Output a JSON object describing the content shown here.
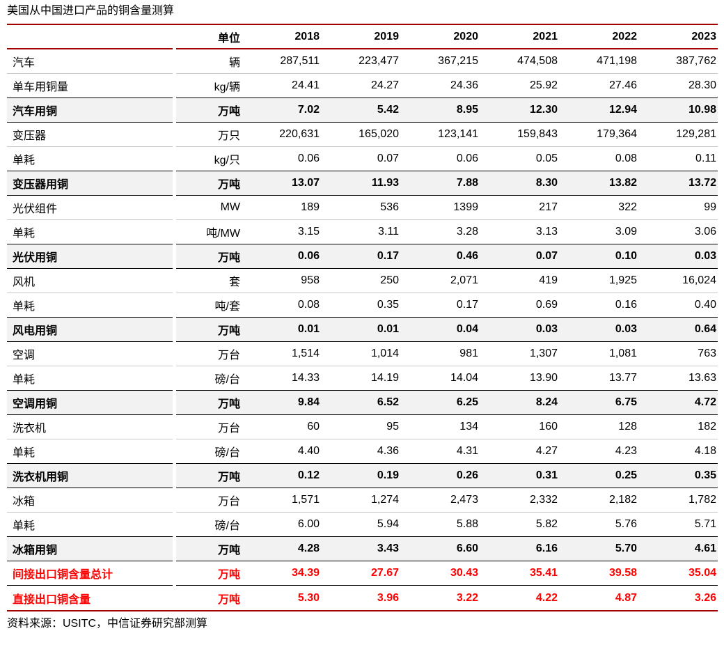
{
  "title": "美国从中国进口产品的铜含量测算",
  "source": "资料来源：USITC，中信证券研究部测算",
  "colors": {
    "rule_dark_red": "#a00000",
    "highlight_red": "#ff0000",
    "separator_gray": "#c9c9c9",
    "subtotal_row_bg": "#f2f2f2"
  },
  "table": {
    "unit_header": "单位",
    "years": [
      "2018",
      "2019",
      "2020",
      "2021",
      "2022",
      "2023"
    ],
    "rows": [
      {
        "label": "汽车",
        "unit": "辆",
        "style": "plain",
        "values": [
          "287,511",
          "223,477",
          "367,215",
          "474,508",
          "471,198",
          "387,762"
        ]
      },
      {
        "label": "单车用铜量",
        "unit": "kg/辆",
        "style": "plain",
        "values": [
          "24.41",
          "24.27",
          "24.36",
          "25.92",
          "27.46",
          "28.30"
        ]
      },
      {
        "label": "汽车用铜",
        "unit": "万吨",
        "style": "subtotal",
        "values": [
          "7.02",
          "5.42",
          "8.95",
          "12.30",
          "12.94",
          "10.98"
        ]
      },
      {
        "label": "变压器",
        "unit": "万只",
        "style": "plain",
        "values": [
          "220,631",
          "165,020",
          "123,141",
          "159,843",
          "179,364",
          "129,281"
        ]
      },
      {
        "label": "单耗",
        "unit": "kg/只",
        "style": "plain",
        "values": [
          "0.06",
          "0.07",
          "0.06",
          "0.05",
          "0.08",
          "0.11"
        ]
      },
      {
        "label": "变压器用铜",
        "unit": "万吨",
        "style": "subtotal",
        "values": [
          "13.07",
          "11.93",
          "7.88",
          "8.30",
          "13.82",
          "13.72"
        ]
      },
      {
        "label": "光伏组件",
        "unit": "MW",
        "style": "plain",
        "values": [
          "189",
          "536",
          "1399",
          "217",
          "322",
          "99"
        ]
      },
      {
        "label": "单耗",
        "unit": "吨/MW",
        "style": "plain",
        "values": [
          "3.15",
          "3.11",
          "3.28",
          "3.13",
          "3.09",
          "3.06"
        ]
      },
      {
        "label": "光伏用铜",
        "unit": "万吨",
        "style": "subtotal",
        "values": [
          "0.06",
          "0.17",
          "0.46",
          "0.07",
          "0.10",
          "0.03"
        ]
      },
      {
        "label": "风机",
        "unit": "套",
        "style": "plain",
        "values": [
          "958",
          "250",
          "2,071",
          "419",
          "1,925",
          "16,024"
        ]
      },
      {
        "label": "单耗",
        "unit": "吨/套",
        "style": "plain",
        "values": [
          "0.08",
          "0.35",
          "0.17",
          "0.69",
          "0.16",
          "0.40"
        ]
      },
      {
        "label": "风电用铜",
        "unit": "万吨",
        "style": "subtotal",
        "values": [
          "0.01",
          "0.01",
          "0.04",
          "0.03",
          "0.03",
          "0.64"
        ]
      },
      {
        "label": "空调",
        "unit": "万台",
        "style": "plain",
        "values": [
          "1,514",
          "1,014",
          "981",
          "1,307",
          "1,081",
          "763"
        ]
      },
      {
        "label": "单耗",
        "unit": "磅/台",
        "style": "plain",
        "values": [
          "14.33",
          "14.19",
          "14.04",
          "13.90",
          "13.77",
          "13.63"
        ]
      },
      {
        "label": "空调用铜",
        "unit": "万吨",
        "style": "subtotal",
        "values": [
          "9.84",
          "6.52",
          "6.25",
          "8.24",
          "6.75",
          "4.72"
        ]
      },
      {
        "label": "洗衣机",
        "unit": "万台",
        "style": "plain",
        "values": [
          "60",
          "95",
          "134",
          "160",
          "128",
          "182"
        ]
      },
      {
        "label": "单耗",
        "unit": "磅/台",
        "style": "plain",
        "values": [
          "4.40",
          "4.36",
          "4.31",
          "4.27",
          "4.23",
          "4.18"
        ]
      },
      {
        "label": "洗衣机用铜",
        "unit": "万吨",
        "style": "subtotal",
        "values": [
          "0.12",
          "0.19",
          "0.26",
          "0.31",
          "0.25",
          "0.35"
        ]
      },
      {
        "label": "冰箱",
        "unit": "万台",
        "style": "plain",
        "values": [
          "1,571",
          "1,274",
          "2,473",
          "2,332",
          "2,182",
          "1,782"
        ]
      },
      {
        "label": "单耗",
        "unit": "磅/台",
        "style": "plain",
        "values": [
          "6.00",
          "5.94",
          "5.88",
          "5.82",
          "5.76",
          "5.71"
        ]
      },
      {
        "label": "冰箱用铜",
        "unit": "万吨",
        "style": "subtotal",
        "values": [
          "4.28",
          "3.43",
          "6.60",
          "6.16",
          "5.70",
          "4.61"
        ]
      },
      {
        "label": "间接出口铜含量总计",
        "unit": "万吨",
        "style": "total-red",
        "values": [
          "34.39",
          "27.67",
          "30.43",
          "35.41",
          "39.58",
          "35.04"
        ]
      },
      {
        "label": "直接出口铜含量",
        "unit": "万吨",
        "style": "total-red",
        "values": [
          "5.30",
          "3.96",
          "3.22",
          "4.22",
          "4.87",
          "3.26"
        ]
      }
    ]
  }
}
